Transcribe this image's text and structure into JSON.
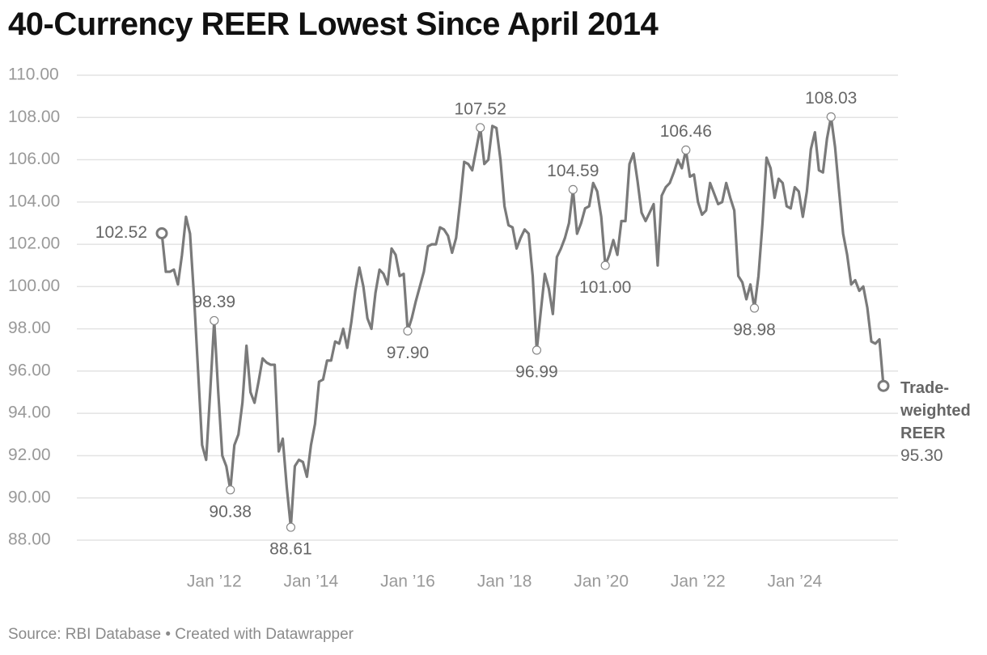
{
  "chart_data": {
    "type": "line",
    "title": "40-Currency REER Lowest Since April 2014",
    "source": "Source: RBI Database • Created with Datawrapper",
    "xlim": [
      "2010-12",
      "2025-11"
    ],
    "xticks": [
      {
        "value": "2012-01",
        "label": "Jan ’12"
      },
      {
        "value": "2014-01",
        "label": "Jan ’14"
      },
      {
        "value": "2016-01",
        "label": "Jan ’16"
      },
      {
        "value": "2018-01",
        "label": "Jan ’18"
      },
      {
        "value": "2020-01",
        "label": "Jan ’20"
      },
      {
        "value": "2022-01",
        "label": "Jan ’22"
      },
      {
        "value": "2024-01",
        "label": "Jan ’24"
      }
    ],
    "ylim": [
      88,
      110
    ],
    "yticks": [
      {
        "value": 88,
        "label": "88.00"
      },
      {
        "value": 90,
        "label": "90.00"
      },
      {
        "value": 92,
        "label": "92.00"
      },
      {
        "value": 94,
        "label": "94.00"
      },
      {
        "value": 96,
        "label": "96.00"
      },
      {
        "value": 98,
        "label": "98.00"
      },
      {
        "value": 100,
        "label": "100.00"
      },
      {
        "value": 102,
        "label": "102.00"
      },
      {
        "value": 104,
        "label": "104.00"
      },
      {
        "value": 106,
        "label": "106.00"
      },
      {
        "value": 108,
        "label": "108.00"
      },
      {
        "value": 110,
        "label": "110.00"
      }
    ],
    "grid": true,
    "x": [
      "2010-12",
      "2011-01",
      "2011-02",
      "2011-03",
      "2011-04",
      "2011-05",
      "2011-06",
      "2011-07",
      "2011-08",
      "2011-09",
      "2011-10",
      "2011-11",
      "2011-12",
      "2012-01",
      "2012-02",
      "2012-03",
      "2012-04",
      "2012-05",
      "2012-06",
      "2012-07",
      "2012-08",
      "2012-09",
      "2012-10",
      "2012-11",
      "2012-12",
      "2013-01",
      "2013-02",
      "2013-03",
      "2013-04",
      "2013-05",
      "2013-06",
      "2013-07",
      "2013-08",
      "2013-09",
      "2013-10",
      "2013-11",
      "2013-12",
      "2014-01",
      "2014-02",
      "2014-03",
      "2014-04",
      "2014-05",
      "2014-06",
      "2014-07",
      "2014-08",
      "2014-09",
      "2014-10",
      "2014-11",
      "2014-12",
      "2015-01",
      "2015-02",
      "2015-03",
      "2015-04",
      "2015-05",
      "2015-06",
      "2015-07",
      "2015-08",
      "2015-09",
      "2015-10",
      "2015-11",
      "2015-12",
      "2016-01",
      "2016-02",
      "2016-03",
      "2016-04",
      "2016-05",
      "2016-06",
      "2016-07",
      "2016-08",
      "2016-09",
      "2016-10",
      "2016-11",
      "2016-12",
      "2017-01",
      "2017-02",
      "2017-03",
      "2017-04",
      "2017-05",
      "2017-06",
      "2017-07",
      "2017-08",
      "2017-09",
      "2017-10",
      "2017-11",
      "2017-12",
      "2018-01",
      "2018-02",
      "2018-03",
      "2018-04",
      "2018-05",
      "2018-06",
      "2018-07",
      "2018-08",
      "2018-09",
      "2018-10",
      "2018-11",
      "2018-12",
      "2019-01",
      "2019-02",
      "2019-03",
      "2019-04",
      "2019-05",
      "2019-06",
      "2019-07",
      "2019-08",
      "2019-09",
      "2019-10",
      "2019-11",
      "2019-12",
      "2020-01",
      "2020-02",
      "2020-03",
      "2020-04",
      "2020-05",
      "2020-06",
      "2020-07",
      "2020-08",
      "2020-09",
      "2020-10",
      "2020-11",
      "2020-12",
      "2021-01",
      "2021-02",
      "2021-03",
      "2021-04",
      "2021-05",
      "2021-06",
      "2021-07",
      "2021-08",
      "2021-09",
      "2021-10",
      "2021-11",
      "2021-12",
      "2022-01",
      "2022-02",
      "2022-03",
      "2022-04",
      "2022-05",
      "2022-06",
      "2022-07",
      "2022-08",
      "2022-09",
      "2022-10",
      "2022-11",
      "2022-12",
      "2023-01",
      "2023-02",
      "2023-03",
      "2023-04",
      "2023-05",
      "2023-06",
      "2023-07",
      "2023-08",
      "2023-09",
      "2023-10",
      "2023-11",
      "2023-12",
      "2024-01",
      "2024-02",
      "2024-03",
      "2024-04",
      "2024-05",
      "2024-06",
      "2024-07",
      "2024-08",
      "2024-09",
      "2024-10",
      "2024-11",
      "2024-12",
      "2025-01",
      "2025-02",
      "2025-03",
      "2025-04",
      "2025-05",
      "2025-06",
      "2025-07",
      "2025-08",
      "2025-09",
      "2025-10",
      "2025-11"
    ],
    "series": [
      {
        "name": "Trade-weighted REER",
        "color": "#7a7a7a",
        "values": [
          102.52,
          100.7,
          100.7,
          100.8,
          100.1,
          101.5,
          103.3,
          102.5,
          99.5,
          96,
          92.5,
          91.8,
          95,
          98.39,
          95,
          92,
          91.5,
          90.38,
          92.5,
          93,
          94.5,
          97.2,
          95,
          94.5,
          95.5,
          96.6,
          96.4,
          96.3,
          96.3,
          92.2,
          92.8,
          90.5,
          88.61,
          91.5,
          91.8,
          91.7,
          91,
          92.5,
          93.5,
          95.5,
          95.6,
          96.5,
          96.5,
          97.4,
          97.3,
          98,
          97.1,
          98.3,
          99.8,
          100.9,
          100,
          98.5,
          98,
          99.7,
          100.8,
          100.6,
          100.1,
          101.8,
          101.5,
          100.5,
          100.6,
          97.9,
          98.5,
          99.3,
          100,
          100.7,
          101.9,
          102,
          102,
          102.8,
          102.7,
          102.4,
          101.6,
          102.3,
          104,
          105.9,
          105.8,
          105.5,
          106.5,
          107.52,
          105.8,
          106,
          107.6,
          107.5,
          106,
          103.8,
          102.9,
          102.8,
          101.8,
          102.3,
          102.7,
          102.5,
          100.5,
          96.99,
          98.8,
          100.6,
          99.9,
          98.7,
          101.4,
          101.8,
          102.3,
          103,
          104.59,
          102.5,
          103,
          103.7,
          103.8,
          104.9,
          104.5,
          103.3,
          101,
          101.5,
          102.2,
          101.5,
          103.1,
          103.1,
          105.8,
          106.3,
          105,
          103.5,
          103.1,
          103.5,
          103.9,
          101,
          104.3,
          104.7,
          104.9,
          105.4,
          106,
          105.6,
          106.46,
          105.2,
          105.3,
          104,
          103.4,
          103.6,
          104.9,
          104.4,
          103.9,
          104,
          104.9,
          104.2,
          103.6,
          100.5,
          100.2,
          99.4,
          100.1,
          98.98,
          100.5,
          103,
          106.1,
          105.6,
          104.2,
          105.1,
          104.9,
          103.8,
          103.7,
          104.7,
          104.5,
          103.3,
          104.5,
          106.5,
          107.3,
          105.5,
          105.4,
          107,
          108.03,
          106.6,
          104.5,
          102.5,
          101.5,
          100.1,
          100.3,
          99.8,
          100,
          99,
          97.4,
          97.3,
          97.5,
          95.3
        ],
        "value_labels": [
          "102.52",
          null,
          null,
          null,
          null,
          null,
          null,
          null,
          null,
          null,
          null,
          null,
          null,
          "98.39",
          null,
          null,
          null,
          "90.38",
          null,
          null,
          null,
          null,
          null,
          null,
          null,
          null,
          null,
          null,
          null,
          null,
          null,
          null,
          "88.61",
          null,
          null,
          null,
          null,
          null,
          null,
          null,
          null,
          null,
          null,
          null,
          null,
          null,
          null,
          null,
          null,
          null,
          null,
          null,
          null,
          null,
          null,
          null,
          null,
          null,
          null,
          null,
          null,
          "97.90",
          null,
          null,
          null,
          null,
          null,
          null,
          null,
          null,
          null,
          null,
          null,
          null,
          null,
          null,
          null,
          null,
          null,
          "107.52",
          null,
          null,
          null,
          null,
          null,
          null,
          null,
          null,
          null,
          null,
          null,
          null,
          null,
          "96.99",
          null,
          null,
          null,
          null,
          null,
          null,
          null,
          null,
          "104.59",
          null,
          null,
          null,
          null,
          null,
          null,
          null,
          "101.00",
          null,
          null,
          null,
          null,
          null,
          null,
          null,
          null,
          null,
          null,
          null,
          null,
          null,
          null,
          null,
          null,
          null,
          null,
          null,
          "106.46",
          null,
          null,
          null,
          null,
          null,
          null,
          null,
          null,
          null,
          null,
          null,
          null,
          null,
          null,
          null,
          null,
          "98.98",
          null,
          null,
          null,
          null,
          null,
          null,
          null,
          null,
          null,
          null,
          null,
          null,
          null,
          null,
          null,
          null,
          null,
          null,
          "108.03",
          null,
          null,
          null,
          null,
          null,
          null,
          null,
          null,
          null,
          null,
          null,
          null,
          "95.30"
        ]
      }
    ]
  }
}
